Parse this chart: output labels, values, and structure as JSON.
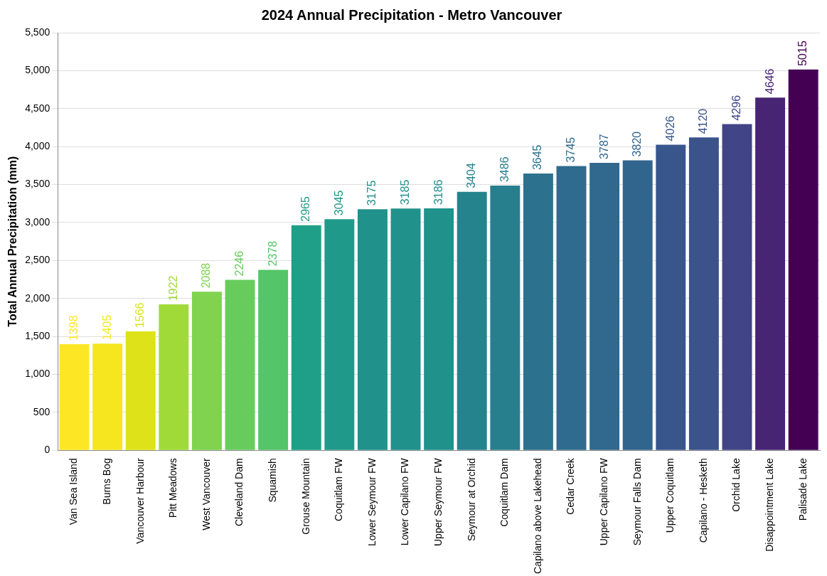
{
  "chart_data": {
    "type": "bar",
    "title": "2024 Annual Precipitation - Metro Vancouver",
    "ylabel": "Total Annual Precipitation (mm)",
    "categories": [
      "Van Sea Island",
      "Burns Bog",
      "Vancouver Harbour",
      "Pitt Meadows",
      "West Vancouver",
      "Cleveland Dam",
      "Squamish",
      "Grouse Mountain",
      "Coquitlam FW",
      "Lower Seymour FW",
      "Lower Capilano FW",
      "Upper Seymour FW",
      "Seymour at Orchid",
      "Coquitlam Dam",
      "Capilano above Lakehead",
      "Cedar Creek",
      "Upper Capilano FW",
      "Seymour Falls Dam",
      "Upper Coquitlam",
      "Capilano - Hesketh",
      "Orchid Lake",
      "Disappointment Lake",
      "Palisade Lake"
    ],
    "values": [
      1398,
      1405,
      1566,
      1922,
      2088,
      2246,
      2378,
      2965,
      3045,
      3175,
      3185,
      3186,
      3404,
      3486,
      3645,
      3745,
      3787,
      3820,
      4026,
      4120,
      4296,
      4646,
      5015
    ],
    "colors": [
      "#fde725",
      "#f6e620",
      "#dde318",
      "#a0da39",
      "#7fd34e",
      "#67cc5c",
      "#54c568",
      "#1f9f88",
      "#1f9a8a",
      "#21918c",
      "#21918c",
      "#21918c",
      "#25838e",
      "#277f8e",
      "#2c728e",
      "#2f6b8e",
      "#31688e",
      "#32658e",
      "#39568c",
      "#3b528b",
      "#414487",
      "#482475",
      "#440154"
    ],
    "ylim": [
      0,
      5500
    ],
    "yticks": [
      0,
      500,
      {
        "value": 1000,
        "label": "1,000"
      },
      {
        "value": 1500,
        "label": "1,500"
      },
      {
        "value": 2000,
        "label": "2,000"
      },
      {
        "value": 2500,
        "label": "2,500"
      },
      {
        "value": 3000,
        "label": "3,000"
      },
      {
        "value": 3500,
        "label": "3,500"
      },
      {
        "value": 4000,
        "label": "4,000"
      },
      {
        "value": 4500,
        "label": "4,500"
      },
      {
        "value": 5000,
        "label": "5,000"
      },
      {
        "value": 5500,
        "label": "5,500"
      }
    ],
    "grid": "y",
    "data_labels": true
  }
}
